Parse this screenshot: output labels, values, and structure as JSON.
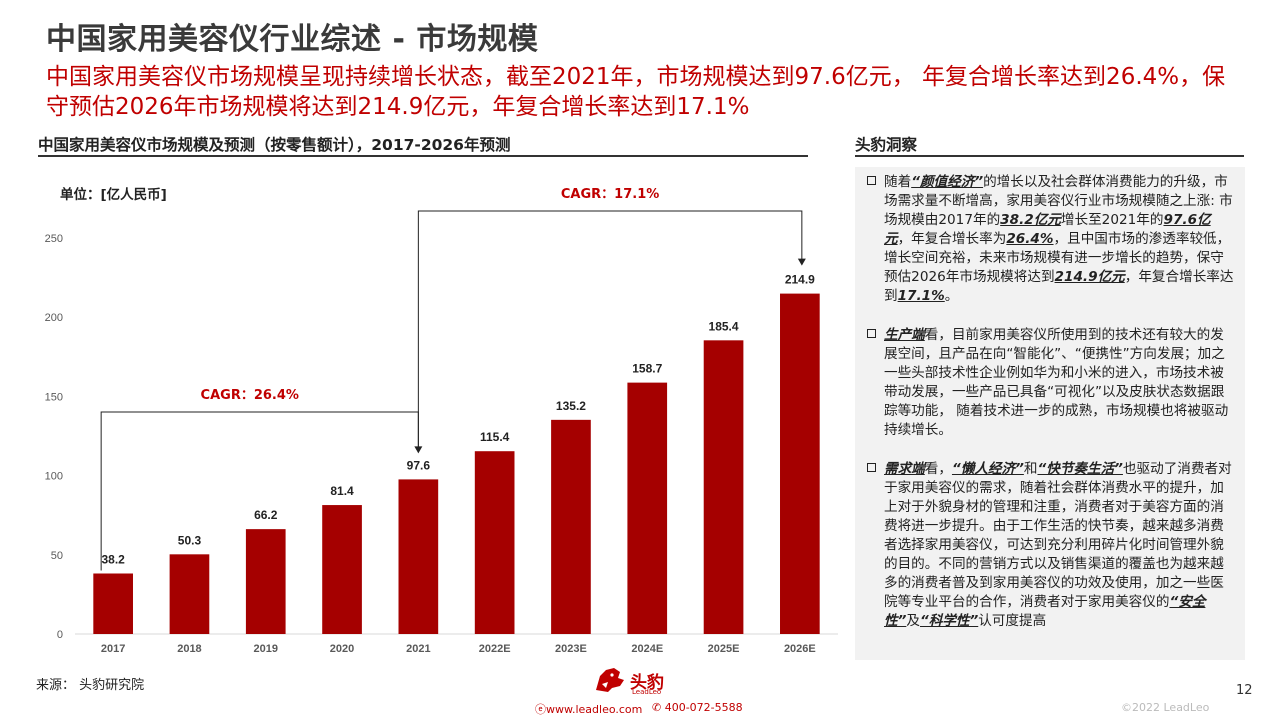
{
  "page": {
    "title": "中国家用美容仪行业综述 - 市场规模",
    "subtitle": "中国家用美容仪市场规模呈现持续增长状态，截至2021年，市场规模达到97.6亿元，  年复合增长率达到26.4%，保守预估2026年市场规模将达到214.9亿元，年复合增长率达到17.1%",
    "page_number": "12",
    "source": "来源：  头豹研究院",
    "copyright": "©2022 LeadLeo"
  },
  "chart_data": {
    "type": "bar",
    "title": "中国家用美容仪市场规模及预测（按零售额计），2017-2026年预测",
    "unit": "单位：[亿人民币]",
    "categories": [
      "2017",
      "2018",
      "2019",
      "2020",
      "2021",
      "2022E",
      "2023E",
      "2024E",
      "2025E",
      "2026E"
    ],
    "values": [
      38.2,
      50.3,
      66.2,
      81.4,
      97.6,
      115.4,
      135.2,
      158.7,
      185.4,
      214.9
    ],
    "value_labels": [
      "38.2",
      "50.3",
      "66.2",
      "81.4",
      "97.6",
      "115.4",
      "135.2",
      "158.7",
      "185.4",
      "214.9"
    ],
    "yticks": [
      "0",
      "50",
      "100",
      "150",
      "200",
      "250"
    ],
    "ylim": [
      0,
      250
    ],
    "bar_color": "#a50000",
    "annotations": [
      {
        "text": "CAGR：26.4%",
        "from": "2017",
        "to": "2021"
      },
      {
        "text": "CAGR：17.1%",
        "from": "2021",
        "to": "2026E"
      }
    ],
    "grid": false
  },
  "insights": {
    "heading": "头豹洞察",
    "items": [
      {
        "segments": [
          {
            "t": "随着",
            "h": false
          },
          {
            "t": "“颜值经济”",
            "h": true
          },
          {
            "t": "的增长以及社会群体消费能力的升级，市场需求量不断增高，家用美容仪行业市场规模随之上涨: 市场规模由2017年的",
            "h": false
          },
          {
            "t": "38.2亿元",
            "h": true
          },
          {
            "t": "增长至2021年的",
            "h": false
          },
          {
            "t": "97.6亿元",
            "h": true
          },
          {
            "t": "，年复合增长率为",
            "h": false
          },
          {
            "t": "26.4%",
            "h": true
          },
          {
            "t": "，且中国市场的渗透率较低，增长空间充裕，未来市场规模有进一步增长的趋势，保守预估2026年市场规模将达到",
            "h": false
          },
          {
            "t": "214.9亿元",
            "h": true
          },
          {
            "t": "，年复合增长率达到",
            "h": false
          },
          {
            "t": "17.1%",
            "h": true
          },
          {
            "t": "。",
            "h": false
          }
        ]
      },
      {
        "segments": [
          {
            "t": "生产端",
            "h": true
          },
          {
            "t": "看，目前家用美容仪所使用到的技术还有较大的发展空间，且产品在向“智能化”、“便携性”方向发展；加之一些头部技术性企业例如华为和小米的进入，市场技术被带动发展，一些产品已具备“可视化”以及皮肤状态数据跟踪等功能，  随着技术进一步的成熟，市场规模也将被驱动持续增长。",
            "h": false
          }
        ]
      },
      {
        "segments": [
          {
            "t": "需求端",
            "h": true
          },
          {
            "t": "看，",
            "h": false
          },
          {
            "t": "“懒人经济”",
            "h": true
          },
          {
            "t": "和",
            "h": false
          },
          {
            "t": "“快节奏生活”",
            "h": true
          },
          {
            "t": "也驱动了消费者对于家用美容仪的需求，随着社会群体消费水平的提升，加上对于外貌身材的管理和注重，消费者对于美容方面的消费将进一步提升。由于工作生活的快节奏，越来越多消费者选择家用美容仪，可达到充分利用碎片化时间管理外貌的目的。不同的营销方式以及销售渠道的覆盖也为越来越多的消费者普及到家用美容仪的功效及使用，加之一些医院等专业平台的合作，消费者对于家用美容仪的",
            "h": false
          },
          {
            "t": "“安全性”",
            "h": true
          },
          {
            "t": "及",
            "h": false
          },
          {
            "t": "“科学性”",
            "h": true
          },
          {
            "t": "认可度提高",
            "h": false
          }
        ]
      }
    ]
  },
  "footer": {
    "logo_text": "头豹",
    "logo_sub": "LeadLeo",
    "website": "www.leadleo.com",
    "phone": "400-072-5588"
  }
}
